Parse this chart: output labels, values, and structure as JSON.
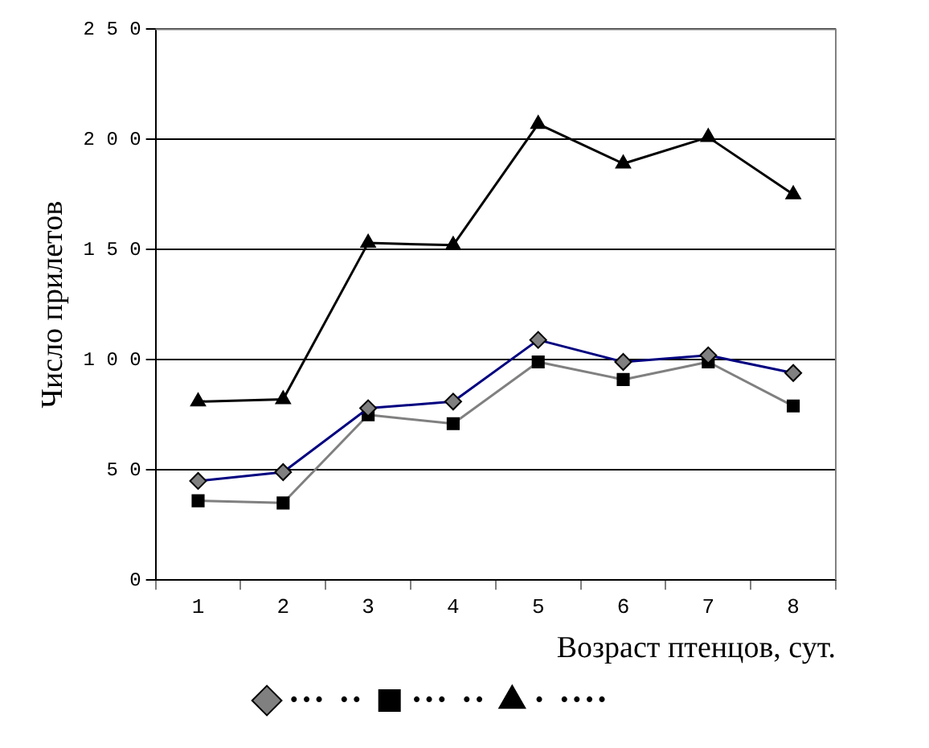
{
  "chart_data": {
    "type": "line",
    "xlabel": "Возраст птенцов, сут.",
    "ylabel": "Число прилетов",
    "categories": [
      "1",
      "2",
      "3",
      "4",
      "5",
      "6",
      "7",
      "8"
    ],
    "series": [
      {
        "name": "••• ••",
        "color": "#000080",
        "marker": "diamond",
        "values": [
          45,
          49,
          78,
          81,
          109,
          99,
          102,
          94
        ]
      },
      {
        "name": "••• ••",
        "color": "#808080",
        "marker": "square",
        "values": [
          36,
          35,
          75,
          71,
          99,
          91,
          99,
          79
        ]
      },
      {
        "name": "• ••••",
        "color": "#000000",
        "marker": "triangle",
        "values": [
          81,
          82,
          153,
          152,
          207,
          189,
          201,
          175
        ]
      }
    ],
    "ylim": [
      0,
      250
    ],
    "yticks": [
      0,
      50,
      100,
      150,
      200,
      250
    ],
    "grid": "y",
    "legend": "bottom",
    "line_style": "solid"
  }
}
